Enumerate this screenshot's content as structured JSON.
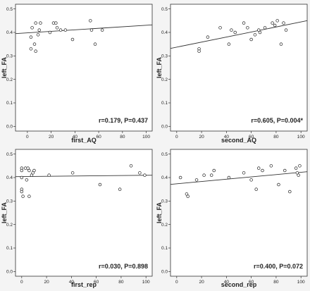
{
  "chart_data": [
    {
      "type": "scatter",
      "xlabel": "first_AQ",
      "ylabel": "left_FA",
      "xlim": [
        -10,
        105
      ],
      "ylim": [
        -0.02,
        0.52
      ],
      "xticks": [
        "0",
        "20",
        "40",
        "60",
        "80",
        "100"
      ],
      "yticks": [
        "0.0",
        "0.1",
        "0.2",
        "0.3",
        "0.4",
        "0.5"
      ],
      "annotation": "r=0.179,  P=0.437",
      "fit_line": {
        "x": [
          -10,
          105
        ],
        "y": [
          0.395,
          0.432
        ]
      },
      "points": [
        {
          "x": 3,
          "y": 0.38
        },
        {
          "x": 3,
          "y": 0.33
        },
        {
          "x": 4,
          "y": 0.42
        },
        {
          "x": 6,
          "y": 0.35
        },
        {
          "x": 7,
          "y": 0.44
        },
        {
          "x": 7,
          "y": 0.32
        },
        {
          "x": 9,
          "y": 0.39
        },
        {
          "x": 10,
          "y": 0.41
        },
        {
          "x": 11,
          "y": 0.44
        },
        {
          "x": 19,
          "y": 0.4
        },
        {
          "x": 22,
          "y": 0.44
        },
        {
          "x": 24,
          "y": 0.44
        },
        {
          "x": 25,
          "y": 0.42
        },
        {
          "x": 28,
          "y": 0.41
        },
        {
          "x": 32,
          "y": 0.41
        },
        {
          "x": 38,
          "y": 0.37
        },
        {
          "x": 53,
          "y": 0.45
        },
        {
          "x": 54,
          "y": 0.41
        },
        {
          "x": 57,
          "y": 0.35
        },
        {
          "x": 63,
          "y": 0.41
        }
      ]
    },
    {
      "type": "scatter",
      "xlabel": "second_AQ",
      "ylabel": "left_FA",
      "xlim": [
        -5,
        105
      ],
      "ylim": [
        -0.02,
        0.52
      ],
      "xticks": [
        "0",
        "20",
        "40",
        "60",
        "80",
        "100"
      ],
      "yticks": [
        "0.0",
        "0.1",
        "0.2",
        "0.3",
        "0.4",
        "0.5"
      ],
      "annotation": "r=0.605,  P=0.004*",
      "fit_line": {
        "x": [
          -5,
          105
        ],
        "y": [
          0.332,
          0.45
        ]
      },
      "points": [
        {
          "x": 18,
          "y": 0.33
        },
        {
          "x": 18,
          "y": 0.32
        },
        {
          "x": 25,
          "y": 0.38
        },
        {
          "x": 35,
          "y": 0.42
        },
        {
          "x": 42,
          "y": 0.35
        },
        {
          "x": 44,
          "y": 0.41
        },
        {
          "x": 47,
          "y": 0.4
        },
        {
          "x": 54,
          "y": 0.44
        },
        {
          "x": 57,
          "y": 0.42
        },
        {
          "x": 60,
          "y": 0.37
        },
        {
          "x": 63,
          "y": 0.39
        },
        {
          "x": 66,
          "y": 0.41
        },
        {
          "x": 67,
          "y": 0.4
        },
        {
          "x": 71,
          "y": 0.42
        },
        {
          "x": 77,
          "y": 0.44
        },
        {
          "x": 79,
          "y": 0.43
        },
        {
          "x": 81,
          "y": 0.45
        },
        {
          "x": 84,
          "y": 0.35
        },
        {
          "x": 86,
          "y": 0.44
        },
        {
          "x": 88,
          "y": 0.41
        }
      ]
    },
    {
      "type": "scatter",
      "xlabel": "first_rep",
      "ylabel": "left_FA",
      "xlim": [
        -5,
        105
      ],
      "ylim": [
        -0.02,
        0.52
      ],
      "xticks": [
        "0",
        "20",
        "40",
        "60",
        "80",
        "100"
      ],
      "yticks": [
        "0.0",
        "0.1",
        "0.2",
        "0.3",
        "0.4",
        "0.5"
      ],
      "annotation": "r=0.030,  P=0.898",
      "fit_line": {
        "x": [
          -5,
          105
        ],
        "y": [
          0.404,
          0.41
        ]
      },
      "points": [
        {
          "x": 0,
          "y": 0.44
        },
        {
          "x": 0,
          "y": 0.43
        },
        {
          "x": 0,
          "y": 0.4
        },
        {
          "x": 0,
          "y": 0.35
        },
        {
          "x": 0,
          "y": 0.34
        },
        {
          "x": 1,
          "y": 0.32
        },
        {
          "x": 3,
          "y": 0.44
        },
        {
          "x": 4,
          "y": 0.39
        },
        {
          "x": 5,
          "y": 0.44
        },
        {
          "x": 6,
          "y": 0.43
        },
        {
          "x": 6,
          "y": 0.32
        },
        {
          "x": 8,
          "y": 0.41
        },
        {
          "x": 9,
          "y": 0.42
        },
        {
          "x": 10,
          "y": 0.43
        },
        {
          "x": 22,
          "y": 0.41
        },
        {
          "x": 41,
          "y": 0.42
        },
        {
          "x": 63,
          "y": 0.37
        },
        {
          "x": 79,
          "y": 0.35
        },
        {
          "x": 88,
          "y": 0.45
        },
        {
          "x": 95,
          "y": 0.42
        },
        {
          "x": 99,
          "y": 0.41
        }
      ]
    },
    {
      "type": "scatter",
      "xlabel": "second_rep",
      "ylabel": "left_FA",
      "xlim": [
        -5,
        105
      ],
      "ylim": [
        -0.02,
        0.52
      ],
      "xticks": [
        "0",
        "20",
        "40",
        "60",
        "80",
        "100"
      ],
      "yticks": [
        "0.0",
        "0.1",
        "0.2",
        "0.3",
        "0.4",
        "0.5"
      ],
      "annotation": "r=0.400,  P=0.072",
      "fit_line": {
        "x": [
          -5,
          105
        ],
        "y": [
          0.371,
          0.425
        ]
      },
      "points": [
        {
          "x": 3,
          "y": 0.4
        },
        {
          "x": 8,
          "y": 0.33
        },
        {
          "x": 9,
          "y": 0.32
        },
        {
          "x": 16,
          "y": 0.39
        },
        {
          "x": 22,
          "y": 0.41
        },
        {
          "x": 28,
          "y": 0.41
        },
        {
          "x": 30,
          "y": 0.43
        },
        {
          "x": 42,
          "y": 0.4
        },
        {
          "x": 54,
          "y": 0.42
        },
        {
          "x": 60,
          "y": 0.39
        },
        {
          "x": 64,
          "y": 0.35
        },
        {
          "x": 66,
          "y": 0.44
        },
        {
          "x": 69,
          "y": 0.43
        },
        {
          "x": 76,
          "y": 0.45
        },
        {
          "x": 82,
          "y": 0.37
        },
        {
          "x": 87,
          "y": 0.43
        },
        {
          "x": 91,
          "y": 0.34
        },
        {
          "x": 96,
          "y": 0.44
        },
        {
          "x": 97,
          "y": 0.42
        },
        {
          "x": 98,
          "y": 0.41
        },
        {
          "x": 99,
          "y": 0.45
        }
      ]
    }
  ]
}
